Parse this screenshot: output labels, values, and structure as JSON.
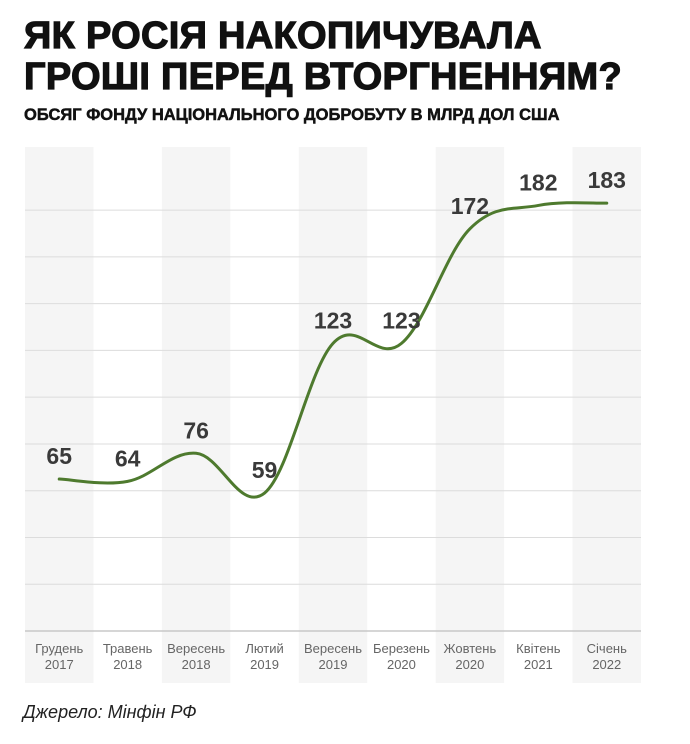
{
  "title_line1": "ЯК РОСІЯ НАКОПИЧУВАЛА",
  "title_line2": "ГРОШІ ПЕРЕД ВТОРГНЕННЯМ?",
  "subtitle": "ОБСЯГ ФОНДУ НАЦІОНАЛЬНОГО ДОБРОБУТУ В МЛРД ДОЛ США",
  "source": "Джерело: Мінфін РФ",
  "chart_data": {
    "type": "line",
    "title": "ЯК РОСІЯ НАКОПИЧУВАЛА ГРОШІ ПЕРЕД ВТОРГНЕННЯМ?",
    "subtitle": "ОБСЯГ ФОНДУ НАЦІОНАЛЬНОГО ДОБРОБУТУ В МЛРД ДОЛ США",
    "categories": [
      [
        "Грудень",
        "2017"
      ],
      [
        "Травень",
        "2018"
      ],
      [
        "Вересень",
        "2018"
      ],
      [
        "Лютий",
        "2019"
      ],
      [
        "Вересень",
        "2019"
      ],
      [
        "Березень",
        "2020"
      ],
      [
        "Жовтень",
        "2020"
      ],
      [
        "Квітень",
        "2021"
      ],
      [
        "Січень",
        "2022"
      ]
    ],
    "values": [
      65,
      64,
      76,
      59,
      123,
      123,
      172,
      182,
      183
    ],
    "ylim": [
      0,
      207
    ],
    "grid": true,
    "grid_step": 20,
    "y_tick_labels_shown": false,
    "smooth": true,
    "line_color": "#4e7a2e",
    "stripe_color": "#f5f5f5",
    "label_color": "#3a3a3a"
  }
}
